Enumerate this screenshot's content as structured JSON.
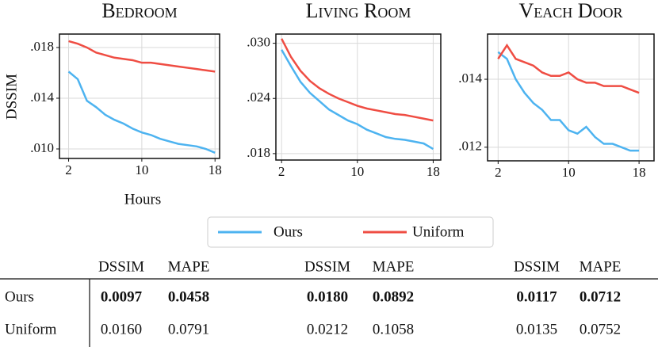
{
  "chart_data": [
    {
      "type": "line",
      "title": "Bedroom",
      "y_label": "DSSIM",
      "x_label": "Hours",
      "x": [
        2,
        3,
        4,
        5,
        6,
        7,
        8,
        9,
        10,
        11,
        12,
        13,
        14,
        15,
        16,
        17,
        18
      ],
      "xlim": [
        1,
        18.5
      ],
      "ylim": [
        0.00925,
        0.01906
      ],
      "xticks": [
        2,
        10,
        18
      ],
      "yticks": [
        {
          "value": 0.01,
          "label": ".010"
        },
        {
          "value": 0.014,
          "label": ".014"
        },
        {
          "value": 0.018,
          "label": ".018"
        }
      ],
      "grid": true,
      "series": [
        {
          "name": "Ours",
          "color": "#4db3f0",
          "values": [
            0.0161,
            0.0155,
            0.0138,
            0.0133,
            0.0127,
            0.0123,
            0.012,
            0.0116,
            0.0113,
            0.0111,
            0.0108,
            0.0106,
            0.0104,
            0.0103,
            0.0102,
            0.01,
            0.0097
          ]
        },
        {
          "name": "Uniform",
          "color": "#ef4d43",
          "values": [
            0.0185,
            0.0183,
            0.018,
            0.0176,
            0.0174,
            0.0172,
            0.0171,
            0.017,
            0.0168,
            0.0168,
            0.0167,
            0.0166,
            0.0165,
            0.0164,
            0.0163,
            0.0162,
            0.0161
          ]
        }
      ]
    },
    {
      "type": "line",
      "title": "Living Room",
      "x": [
        2,
        3,
        4,
        5,
        6,
        7,
        8,
        9,
        10,
        11,
        12,
        13,
        14,
        15,
        16,
        17,
        18
      ],
      "xlim": [
        1.4,
        18.8
      ],
      "ylim": [
        0.0173,
        0.031
      ],
      "xticks": [
        2,
        10,
        18
      ],
      "yticks": [
        {
          "value": 0.018,
          "label": ".018"
        },
        {
          "value": 0.024,
          "label": ".024"
        },
        {
          "value": 0.03,
          "label": ".030"
        }
      ],
      "grid": true,
      "series": [
        {
          "name": "Ours",
          "color": "#4db3f0",
          "values": [
            0.0293,
            0.0275,
            0.0258,
            0.0246,
            0.0237,
            0.0228,
            0.0222,
            0.0216,
            0.0212,
            0.0206,
            0.0202,
            0.0198,
            0.0196,
            0.0195,
            0.0193,
            0.0191,
            0.0185
          ]
        },
        {
          "name": "Uniform",
          "color": "#ef4d43",
          "values": [
            0.0305,
            0.0285,
            0.027,
            0.0259,
            0.0251,
            0.0245,
            0.024,
            0.0236,
            0.0232,
            0.0229,
            0.0227,
            0.0225,
            0.0223,
            0.0222,
            0.022,
            0.0218,
            0.0216
          ]
        }
      ]
    },
    {
      "type": "line",
      "title": "Veach Door",
      "x": [
        2,
        3,
        4,
        5,
        6,
        7,
        8,
        9,
        10,
        11,
        12,
        13,
        14,
        15,
        16,
        17,
        18
      ],
      "xlim": [
        0.8,
        19.7
      ],
      "ylim": [
        0.0116,
        0.01533
      ],
      "xticks": [
        2,
        10,
        18
      ],
      "yticks": [
        {
          "value": 0.012,
          "label": ".012"
        },
        {
          "value": 0.014,
          "label": ".014"
        }
      ],
      "grid": true,
      "series": [
        {
          "name": "Ours",
          "color": "#4db3f0",
          "values": [
            0.0148,
            0.0146,
            0.014,
            0.0136,
            0.0133,
            0.0131,
            0.0128,
            0.0128,
            0.0125,
            0.0124,
            0.0126,
            0.0123,
            0.0121,
            0.0121,
            0.012,
            0.0119,
            0.0119
          ]
        },
        {
          "name": "Uniform",
          "color": "#ef4d43",
          "values": [
            0.0146,
            0.015,
            0.0146,
            0.0145,
            0.0144,
            0.0142,
            0.0141,
            0.0141,
            0.0142,
            0.014,
            0.0139,
            0.0139,
            0.0138,
            0.0138,
            0.0138,
            0.0137,
            0.0136
          ]
        }
      ]
    }
  ],
  "table": {
    "columns": [
      "DSSIM",
      "MAPE",
      "DSSIM",
      "MAPE",
      "DSSIM",
      "MAPE"
    ],
    "rows": [
      [
        "Ours",
        "0.0097",
        "0.0458",
        "0.0180",
        "0.0892",
        "0.0117",
        "0.0712"
      ],
      [
        "Uniform",
        "0.0160",
        "0.0791",
        "0.0212",
        "0.1058",
        "0.0135",
        "0.0752"
      ]
    ]
  }
}
